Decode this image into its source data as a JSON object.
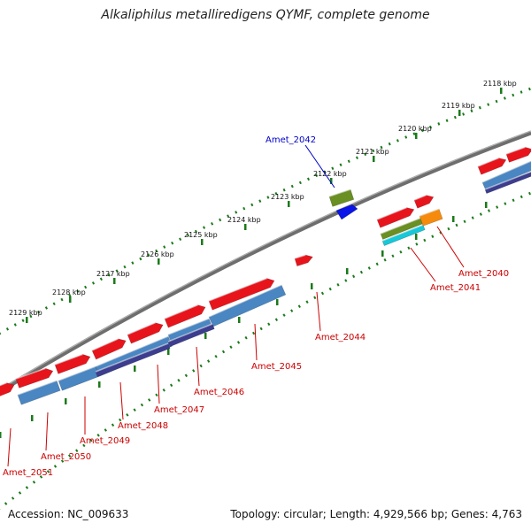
{
  "header": {
    "title": "Alkaliphilus metalliredigens QYMF, complete genome"
  },
  "footer": {
    "accession": "Accession: NC_009633",
    "topology": "Topology: circular; Length: 4,929,566 bp; Genes: 4,763"
  },
  "ruler": {
    "ticks": [
      "2118 kbp",
      "2119 kbp",
      "2120 kbp",
      "2121 kbp",
      "2122 kbp",
      "2123 kbp",
      "2124 kbp",
      "2125 kbp",
      "2126 kbp",
      "2127 kbp",
      "2128 kbp",
      "2129 kbp"
    ]
  },
  "genes": [
    {
      "name": "Amet_2040",
      "color": "#cc0000"
    },
    {
      "name": "Amet_2041",
      "color": "#cc0000"
    },
    {
      "name": "Amet_2042",
      "color": "#0000cc"
    },
    {
      "name": "Amet_2044",
      "color": "#cc0000"
    },
    {
      "name": "Amet_2045",
      "color": "#cc0000"
    },
    {
      "name": "Amet_2046",
      "color": "#cc0000"
    },
    {
      "name": "Amet_2047",
      "color": "#cc0000"
    },
    {
      "name": "Amet_2048",
      "color": "#cc0000"
    },
    {
      "name": "Amet_2049",
      "color": "#cc0000"
    },
    {
      "name": "Amet_2050",
      "color": "#cc0000"
    },
    {
      "name": "Amet_2051",
      "color": "#cc0000"
    }
  ],
  "colors": {
    "backbone": "#808080",
    "ruler_dots": "#1a7a1a",
    "cds_forward": "#e8141c",
    "cds_reverse": "#0a14e6",
    "feature_blue": "#4a86c2",
    "feature_purple": "#3d3d8f",
    "feature_green": "#6a8f22",
    "feature_cyan": "#17c8d8",
    "feature_orange": "#f58a0c"
  }
}
